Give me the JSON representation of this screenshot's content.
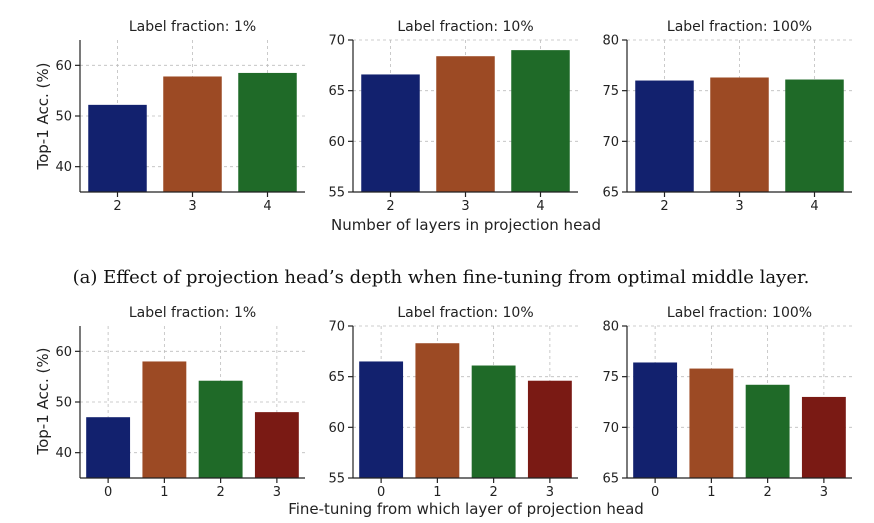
{
  "rows": [
    {
      "x_axis_label": "Number of layers in projection head",
      "y_axis_label": "Top-1 Acc. (%)",
      "caption": "(a)  Effect of projection head’s depth when fine-tuning from optimal middle layer."
    },
    {
      "x_axis_label": "Fine-tuning from which layer of projection head",
      "y_axis_label": "Top-1 Acc. (%)",
      "caption": ""
    }
  ],
  "chart_data": [
    {
      "type": "bar",
      "title": "Label fraction: 1%",
      "categories": [
        "2",
        "3",
        "4"
      ],
      "values": [
        52.2,
        57.8,
        58.5
      ],
      "colors": [
        "#12216e",
        "#9c4a24",
        "#1f6a28"
      ],
      "ylim": [
        35,
        65
      ],
      "yticks": [
        40,
        50,
        60
      ],
      "grid": true
    },
    {
      "type": "bar",
      "title": "Label fraction: 10%",
      "categories": [
        "2",
        "3",
        "4"
      ],
      "values": [
        66.6,
        68.4,
        69.0
      ],
      "colors": [
        "#12216e",
        "#9c4a24",
        "#1f6a28"
      ],
      "ylim": [
        55,
        70
      ],
      "yticks": [
        55,
        60,
        65,
        70
      ],
      "grid": true
    },
    {
      "type": "bar",
      "title": "Label fraction: 100%",
      "categories": [
        "2",
        "3",
        "4"
      ],
      "values": [
        76.0,
        76.3,
        76.1
      ],
      "colors": [
        "#12216e",
        "#9c4a24",
        "#1f6a28"
      ],
      "ylim": [
        65,
        80
      ],
      "yticks": [
        65,
        70,
        75,
        80
      ],
      "grid": true
    },
    {
      "type": "bar",
      "title": "Label fraction: 1%",
      "categories": [
        "0",
        "1",
        "2",
        "3"
      ],
      "values": [
        47.0,
        58.0,
        54.2,
        48.0
      ],
      "colors": [
        "#12216e",
        "#9c4a24",
        "#1f6a28",
        "#7a1a14"
      ],
      "ylim": [
        35,
        65
      ],
      "yticks": [
        40,
        50,
        60
      ],
      "grid": true
    },
    {
      "type": "bar",
      "title": "Label fraction: 10%",
      "categories": [
        "0",
        "1",
        "2",
        "3"
      ],
      "values": [
        66.5,
        68.3,
        66.1,
        64.6
      ],
      "colors": [
        "#12216e",
        "#9c4a24",
        "#1f6a28",
        "#7a1a14"
      ],
      "ylim": [
        55,
        70
      ],
      "yticks": [
        55,
        60,
        65,
        70
      ],
      "grid": true
    },
    {
      "type": "bar",
      "title": "Label fraction: 100%",
      "categories": [
        "0",
        "1",
        "2",
        "3"
      ],
      "values": [
        76.4,
        75.8,
        74.2,
        73.0
      ],
      "colors": [
        "#12216e",
        "#9c4a24",
        "#1f6a28",
        "#7a1a14"
      ],
      "ylim": [
        65,
        80
      ],
      "yticks": [
        65,
        70,
        75,
        80
      ],
      "grid": true
    }
  ]
}
